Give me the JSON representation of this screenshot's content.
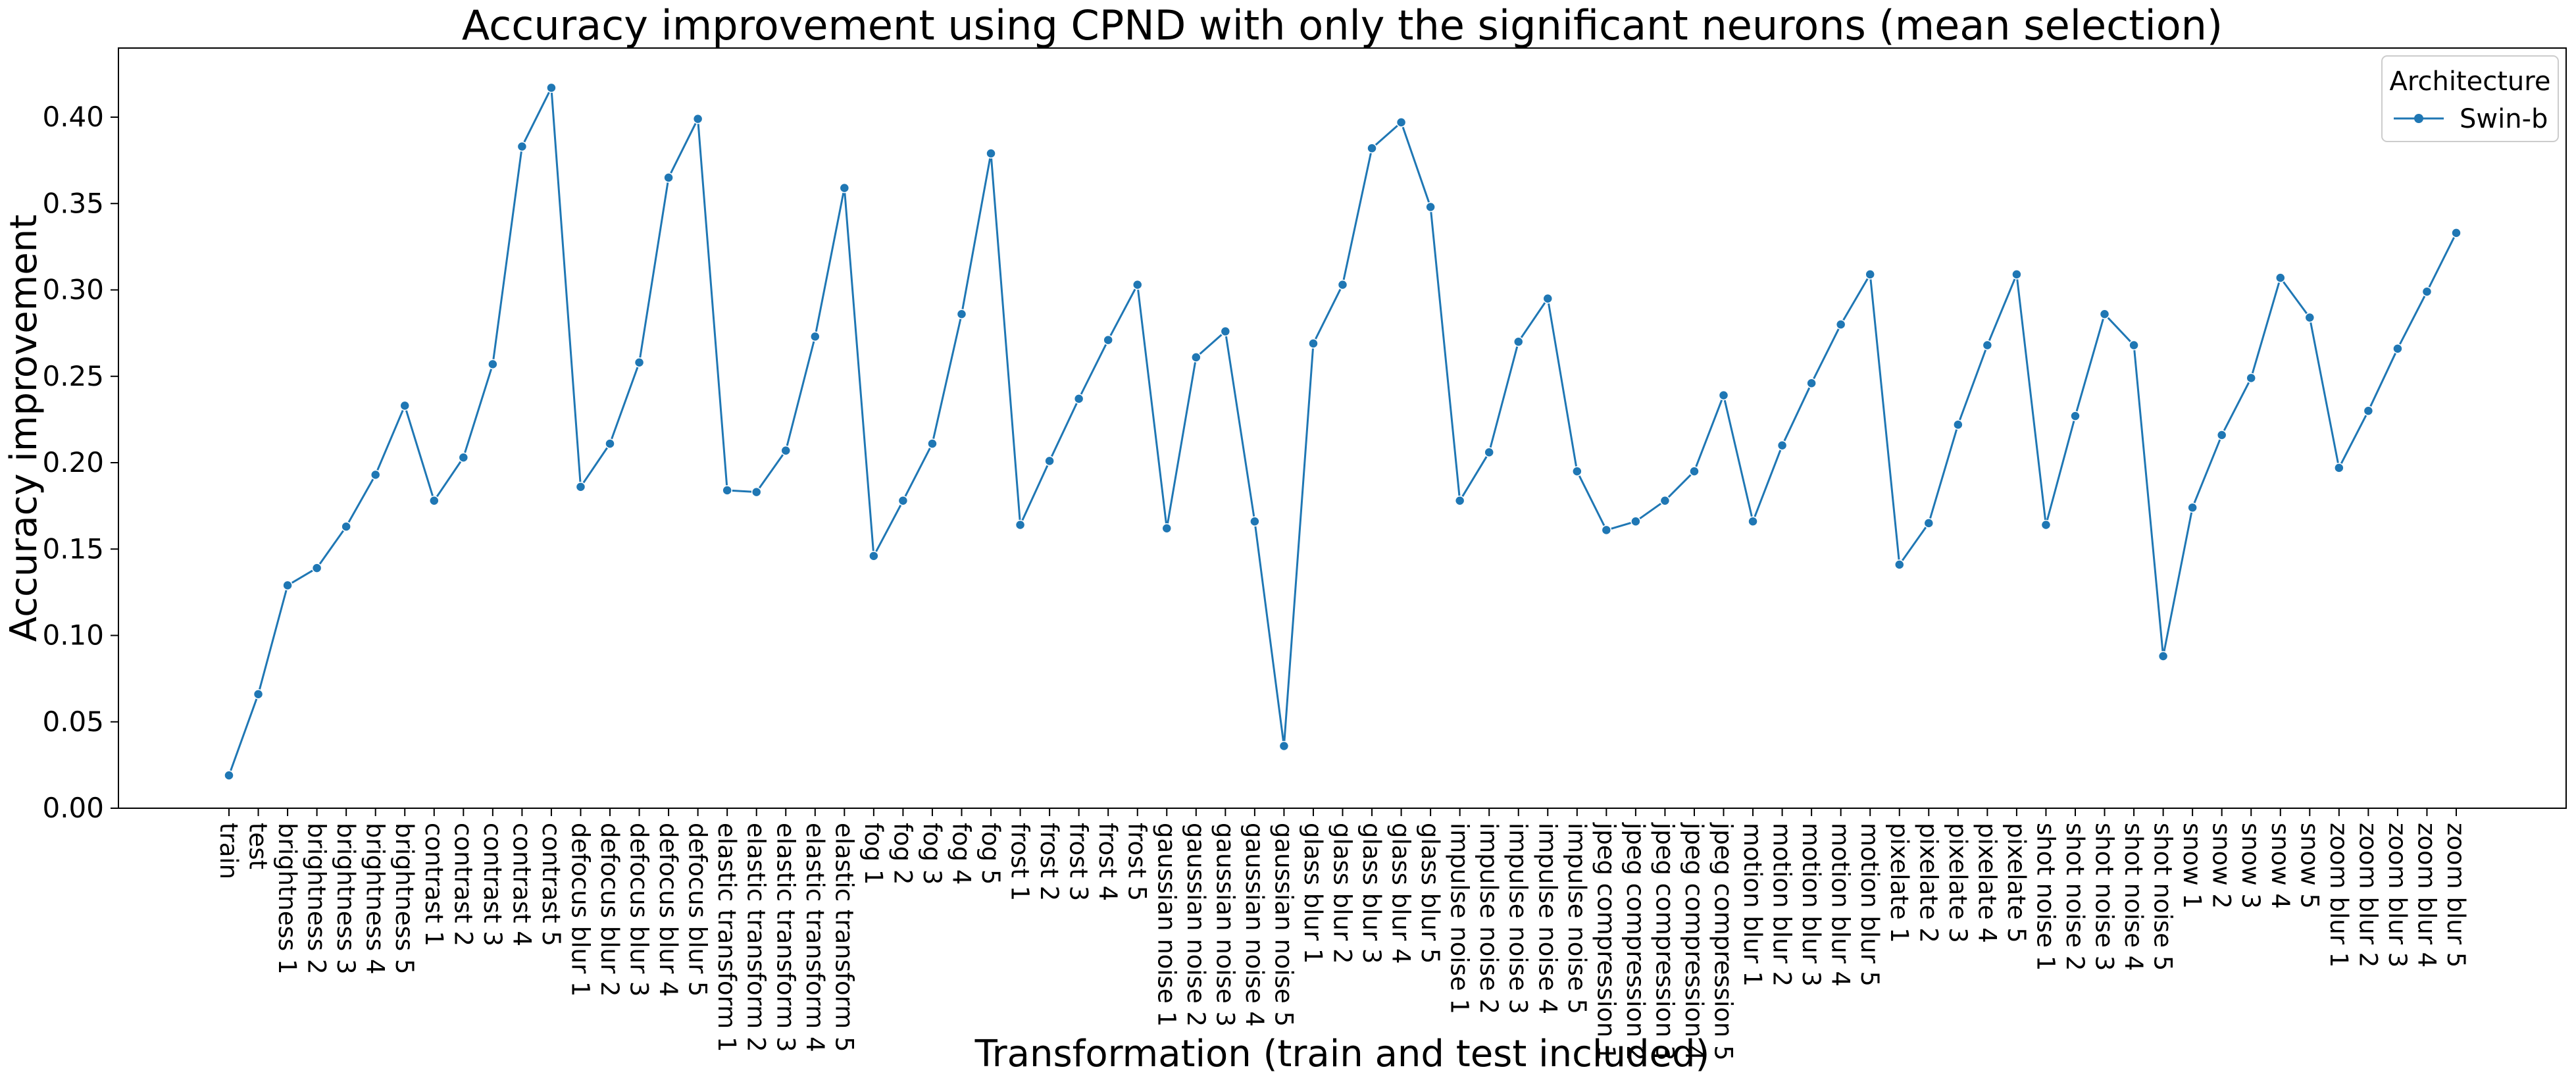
{
  "chart_data": {
    "type": "line",
    "title": "Accuracy improvement using CPND with only the significant neurons (mean selection)",
    "xlabel": "Transformation (train and test included)",
    "ylabel": "Accuracy improvement",
    "ylim": [
      0.0,
      0.44
    ],
    "yticks": [
      "0.00",
      "0.05",
      "0.10",
      "0.15",
      "0.20",
      "0.25",
      "0.30",
      "0.35",
      "0.40"
    ],
    "grid": false,
    "legend": {
      "title": "Architecture",
      "placement": "top-right"
    },
    "categories": [
      "train",
      "test",
      "brightness 1",
      "brightness 2",
      "brightness 3",
      "brightness 4",
      "brightness 5",
      "contrast 1",
      "contrast 2",
      "contrast 3",
      "contrast 4",
      "contrast 5",
      "defocus blur 1",
      "defocus blur 2",
      "defocus blur 3",
      "defocus blur 4",
      "defocus blur 5",
      "elastic transform 1",
      "elastic transform 2",
      "elastic transform 3",
      "elastic transform 4",
      "elastic transform 5",
      "fog 1",
      "fog 2",
      "fog 3",
      "fog 4",
      "fog 5",
      "frost 1",
      "frost 2",
      "frost 3",
      "frost 4",
      "frost 5",
      "gaussian noise 1",
      "gaussian noise 2",
      "gaussian noise 3",
      "gaussian noise 4",
      "gaussian noise 5",
      "glass blur 1",
      "glass blur 2",
      "glass blur 3",
      "glass blur 4",
      "glass blur 5",
      "impulse noise 1",
      "impulse noise 2",
      "impulse noise 3",
      "impulse noise 4",
      "impulse noise 5",
      "jpeg compression 1",
      "jpeg compression 2",
      "jpeg compression 3",
      "jpeg compression 4",
      "jpeg compression 5",
      "motion blur 1",
      "motion blur 2",
      "motion blur 3",
      "motion blur 4",
      "motion blur 5",
      "pixelate 1",
      "pixelate 2",
      "pixelate 3",
      "pixelate 4",
      "pixelate 5",
      "shot noise 1",
      "shot noise 2",
      "shot noise 3",
      "shot noise 4",
      "shot noise 5",
      "snow 1",
      "snow 2",
      "snow 3",
      "snow 4",
      "snow 5",
      "zoom blur 1",
      "zoom blur 2",
      "zoom blur 3",
      "zoom blur 4",
      "zoom blur 5"
    ],
    "series": [
      {
        "name": "Swin-b",
        "color": "#1f77b4",
        "values": [
          0.019,
          0.066,
          0.129,
          0.139,
          0.163,
          0.193,
          0.233,
          0.178,
          0.203,
          0.257,
          0.383,
          0.417,
          0.186,
          0.211,
          0.258,
          0.365,
          0.399,
          0.184,
          0.183,
          0.207,
          0.273,
          0.359,
          0.146,
          0.178,
          0.211,
          0.286,
          0.379,
          0.164,
          0.201,
          0.237,
          0.271,
          0.303,
          0.162,
          0.261,
          0.276,
          0.166,
          0.036,
          0.269,
          0.303,
          0.382,
          0.397,
          0.348,
          0.178,
          0.206,
          0.27,
          0.295,
          0.195,
          0.161,
          0.166,
          0.178,
          0.195,
          0.239,
          0.166,
          0.21,
          0.246,
          0.28,
          0.309,
          0.141,
          0.165,
          0.222,
          0.268,
          0.309,
          0.164,
          0.227,
          0.286,
          0.268,
          0.088,
          0.174,
          0.216,
          0.249,
          0.307,
          0.284,
          0.197,
          0.23,
          0.266,
          0.299,
          0.333
        ]
      }
    ]
  }
}
